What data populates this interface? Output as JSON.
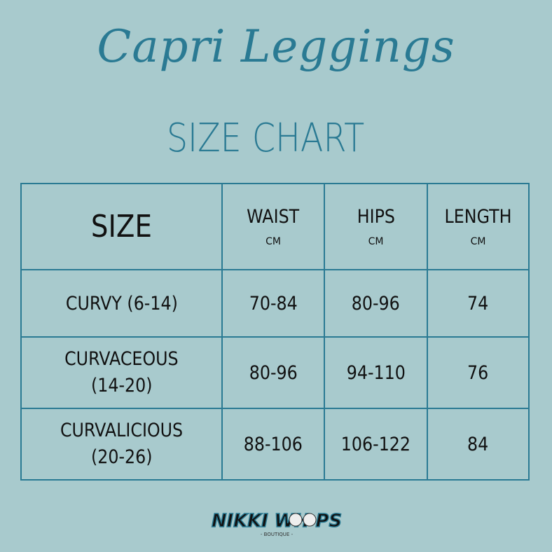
{
  "title": "Capri Leggings",
  "subtitle": "SIZE CHART",
  "table": {
    "headers": [
      {
        "label": "SIZE",
        "unit": ""
      },
      {
        "label": "WAIST",
        "unit": "CM"
      },
      {
        "label": "HIPS",
        "unit": "CM"
      },
      {
        "label": "LENGTH",
        "unit": "CM"
      }
    ],
    "rows": [
      {
        "size": "CURVY (6-14)",
        "size2": "",
        "waist": "70-84",
        "hips": "80-96",
        "length": "74"
      },
      {
        "size": "CURVACEOUS",
        "size2": "(14-20)",
        "waist": "80-96",
        "hips": "94-110",
        "length": "76"
      },
      {
        "size": "CURVALICIOUS",
        "size2": "(20-26)",
        "waist": "88-106",
        "hips": "106-122",
        "length": "84"
      }
    ]
  },
  "logo": {
    "text": "NIKKI WHOOPS",
    "subtext": "BOUTIQUE"
  },
  "colors": {
    "background": "#a8cacd",
    "accent": "#2a7a93"
  }
}
